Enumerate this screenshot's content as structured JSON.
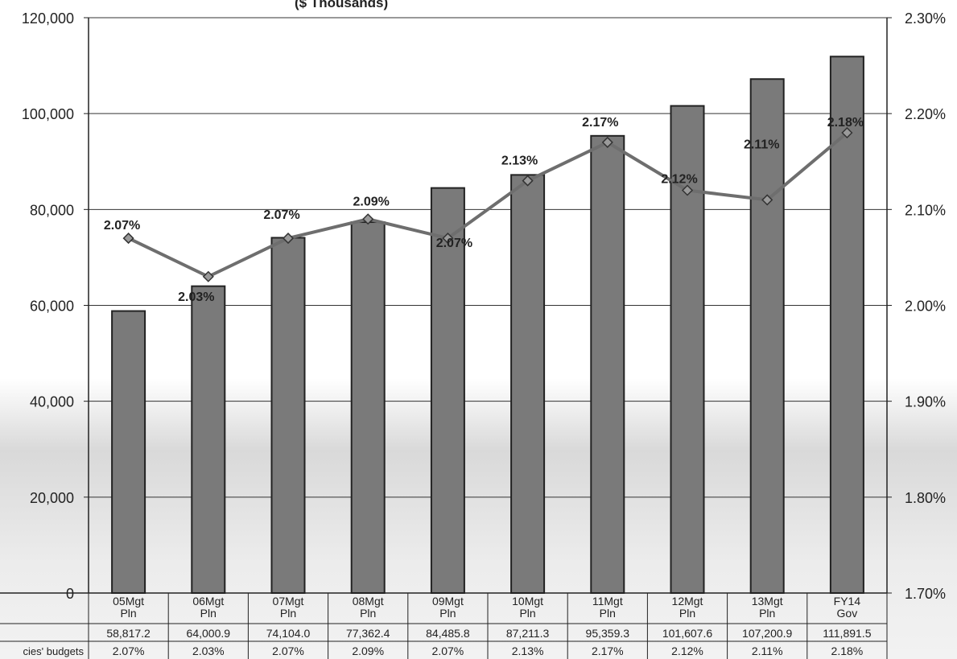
{
  "chart_data": {
    "type": "bar",
    "subtitle": "($ Thousands)",
    "categories": [
      [
        "05Mgt",
        "Pln"
      ],
      [
        "06Mgt",
        "Pln"
      ],
      [
        "07Mgt",
        "Pln"
      ],
      [
        "08Mgt",
        "Pln"
      ],
      [
        "09Mgt",
        "Pln"
      ],
      [
        "10Mgt",
        "Pln"
      ],
      [
        "11Mgt",
        "Pln"
      ],
      [
        "12Mgt",
        "Pln"
      ],
      [
        "13Mgt",
        "Pln"
      ],
      [
        "FY14",
        "Gov"
      ]
    ],
    "series": [
      {
        "type": "bar",
        "axis": "left",
        "values": [
          58817.2,
          64000.9,
          74104.0,
          77362.4,
          84485.8,
          87211.3,
          95359.3,
          101607.6,
          107200.9,
          111891.5
        ],
        "table_values": [
          "58,817.2",
          "64,000.9",
          "74,104.0",
          "77,362.4",
          "84,485.8",
          "87,211.3",
          "95,359.3",
          "101,607.6",
          "107,200.9",
          "111,891.5"
        ]
      },
      {
        "type": "line",
        "axis": "right",
        "name": "cies' budgets",
        "values": [
          2.07,
          2.03,
          2.07,
          2.09,
          2.07,
          2.13,
          2.17,
          2.12,
          2.11,
          2.18
        ],
        "labels": [
          "2.07%",
          "2.03%",
          "2.07%",
          "2.09%",
          "2.07%",
          "2.13%",
          "2.17%",
          "2.12%",
          "2.11%",
          "2.18%"
        ]
      }
    ],
    "y_left": {
      "min": 0,
      "max": 120000,
      "ticks": [
        "0",
        "20,000",
        "40,000",
        "60,000",
        "80,000",
        "100,000",
        "120,000"
      ]
    },
    "y_right": {
      "min": 1.7,
      "max": 2.3,
      "ticks": [
        "1.70%",
        "1.80%",
        "1.90%",
        "2.00%",
        "2.10%",
        "2.20%",
        "2.30%"
      ]
    },
    "grid": true,
    "legend": "none",
    "colors": {
      "bar_fill": "#7a7a7a",
      "bar_stroke": "#222222",
      "line": "#6e6e6e",
      "marker": "#9a9a9a",
      "grid": "#333333"
    }
  }
}
